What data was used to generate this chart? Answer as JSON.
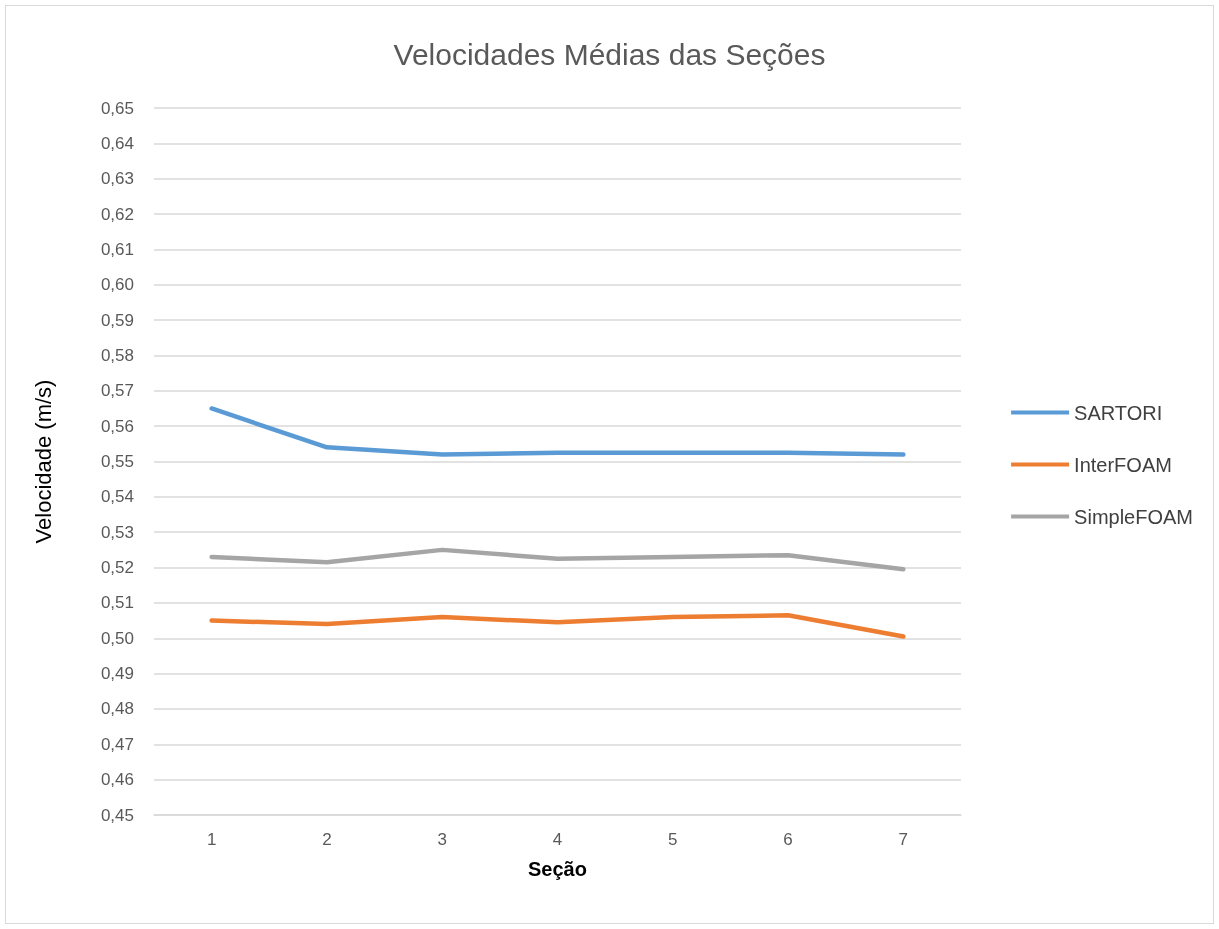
{
  "chart_data": {
    "type": "line",
    "title": "Velocidades Médias das Seções",
    "xlabel": "Seção",
    "ylabel": "Velocidade (m/s)",
    "categories": [
      "1",
      "2",
      "3",
      "4",
      "5",
      "6",
      "7"
    ],
    "series": [
      {
        "name": "SARTORI",
        "color": "#5b9bd5",
        "values": [
          0.565,
          0.554,
          0.552,
          0.5525,
          0.5525,
          0.5525,
          0.552
        ]
      },
      {
        "name": "InterFOAM",
        "color": "#ed7d31",
        "values": [
          0.505,
          0.504,
          0.506,
          0.5045,
          0.506,
          0.5065,
          0.5005
        ]
      },
      {
        "name": "SimpleFOAM",
        "color": "#a5a5a5",
        "values": [
          0.523,
          0.5215,
          0.525,
          0.5225,
          0.523,
          0.5235,
          0.5195
        ]
      }
    ],
    "ylim": [
      0.45,
      0.65
    ],
    "yticks": [
      {
        "value": 0.45,
        "label": "0,45"
      },
      {
        "value": 0.46,
        "label": "0,46"
      },
      {
        "value": 0.47,
        "label": "0,47"
      },
      {
        "value": 0.48,
        "label": "0,48"
      },
      {
        "value": 0.49,
        "label": "0,49"
      },
      {
        "value": 0.5,
        "label": "0,50"
      },
      {
        "value": 0.51,
        "label": "0,51"
      },
      {
        "value": 0.52,
        "label": "0,52"
      },
      {
        "value": 0.53,
        "label": "0,53"
      },
      {
        "value": 0.54,
        "label": "0,54"
      },
      {
        "value": 0.55,
        "label": "0,55"
      },
      {
        "value": 0.56,
        "label": "0,56"
      },
      {
        "value": 0.57,
        "label": "0,57"
      },
      {
        "value": 0.58,
        "label": "0,58"
      },
      {
        "value": 0.59,
        "label": "0,59"
      },
      {
        "value": 0.6,
        "label": "0,60"
      },
      {
        "value": 0.61,
        "label": "0,61"
      },
      {
        "value": 0.62,
        "label": "0,62"
      },
      {
        "value": 0.63,
        "label": "0,63"
      },
      {
        "value": 0.64,
        "label": "0,64"
      },
      {
        "value": 0.65,
        "label": "0,65"
      }
    ],
    "grid": "y",
    "legend": "right",
    "marker": "none",
    "line_style": "solid"
  }
}
